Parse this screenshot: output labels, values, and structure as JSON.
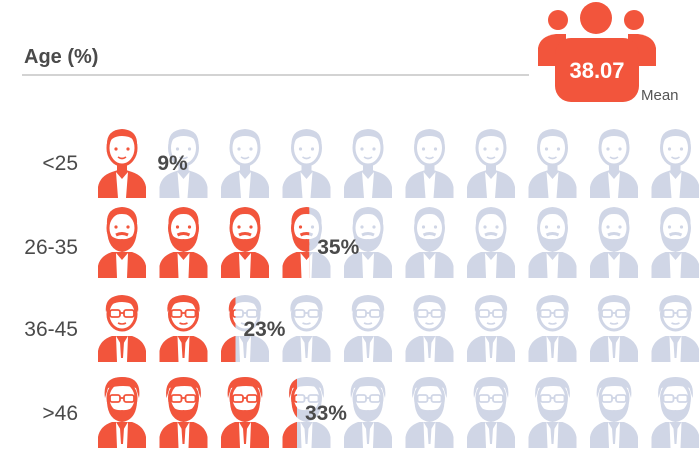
{
  "chart_data": {
    "type": "pictograph",
    "title": "Age (%)",
    "mean": {
      "value": "38.07",
      "label": "Mean"
    },
    "rows": [
      {
        "label": "<25",
        "value": 9,
        "value_label": "9%",
        "avatar": "young"
      },
      {
        "label": "26-35",
        "value": 35,
        "value_label": "35%",
        "avatar": "bearded"
      },
      {
        "label": "36-45",
        "value": 23,
        "value_label": "23%",
        "avatar": "glasses"
      },
      {
        "label": ">46",
        "value": 33,
        "value_label": "33%",
        "avatar": "glasses-beard"
      }
    ],
    "icons_per_row": 10,
    "colors": {
      "filled": "#f2553c",
      "empty": "#d0d6e6",
      "text": "#4a4a4a"
    }
  }
}
